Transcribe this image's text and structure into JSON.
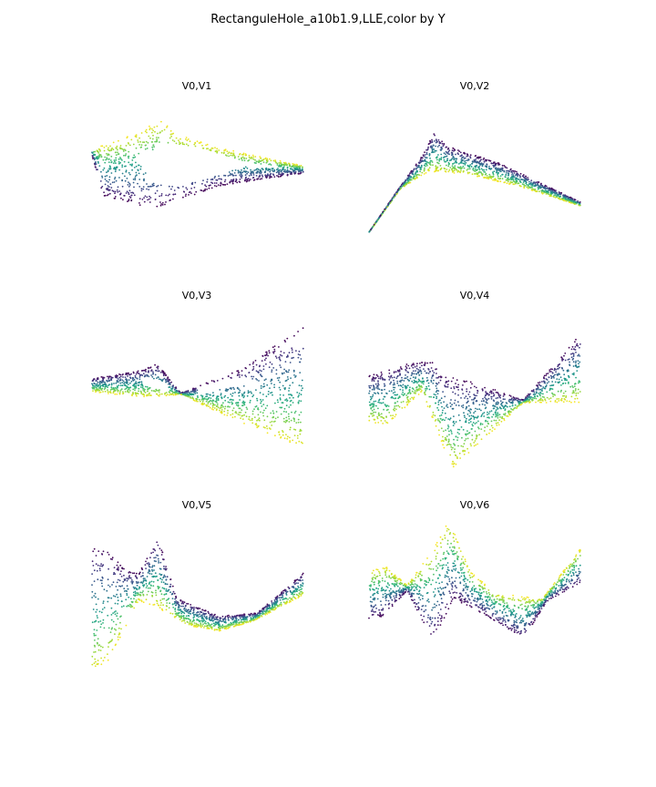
{
  "figure": {
    "title": "RectanguleHole_a10b1.9,LLE,color by Y"
  },
  "chart_data": [
    {
      "type": "scatter",
      "title": "V0,V1",
      "axes": "off",
      "grid": false,
      "legend": "none",
      "colormap": "viridis",
      "color_by": "Y",
      "outline": {
        "outer_top": [
          [
            0.0,
            0.72
          ],
          [
            0.2,
            0.86
          ],
          [
            0.33,
            1.0
          ],
          [
            0.4,
            0.86
          ],
          [
            0.6,
            0.73
          ],
          [
            1.0,
            0.56
          ]
        ],
        "outer_bottom": [
          [
            0.0,
            0.66
          ],
          [
            0.05,
            0.28
          ],
          [
            0.28,
            0.16
          ],
          [
            0.35,
            0.19
          ],
          [
            0.6,
            0.37
          ],
          [
            1.0,
            0.49
          ]
        ],
        "hole_top": [
          [
            0.22,
            0.65
          ],
          [
            0.35,
            0.77
          ],
          [
            0.5,
            0.74
          ],
          [
            0.72,
            0.6
          ],
          [
            0.9,
            0.55
          ]
        ],
        "hole_bottom": [
          [
            0.22,
            0.61
          ],
          [
            0.28,
            0.4
          ],
          [
            0.4,
            0.36
          ],
          [
            0.55,
            0.44
          ],
          [
            0.72,
            0.55
          ],
          [
            0.9,
            0.54
          ]
        ]
      }
    },
    {
      "type": "scatter",
      "title": "V0,V2",
      "axes": "off",
      "grid": false,
      "legend": "none",
      "colormap": "viridis",
      "color_by": "Y",
      "outline": {
        "top": [
          [
            0.0,
            0.0
          ],
          [
            0.15,
            0.46
          ],
          [
            0.26,
            0.78
          ],
          [
            0.31,
            1.0
          ],
          [
            0.37,
            0.85
          ],
          [
            0.62,
            0.68
          ],
          [
            1.0,
            0.3
          ]
        ],
        "bottom": [
          [
            0.0,
            0.0
          ],
          [
            0.15,
            0.43
          ],
          [
            0.28,
            0.6
          ],
          [
            0.45,
            0.58
          ],
          [
            0.7,
            0.46
          ],
          [
            1.0,
            0.26
          ]
        ]
      }
    },
    {
      "type": "scatter",
      "title": "V0,V3",
      "axes": "off",
      "grid": false,
      "legend": "none",
      "colormap": "viridis",
      "color_by": "Y",
      "outline": {
        "top": [
          [
            0.0,
            0.6
          ],
          [
            0.22,
            0.66
          ],
          [
            0.31,
            0.71
          ],
          [
            0.36,
            0.61
          ],
          [
            0.42,
            0.49
          ],
          [
            0.7,
            0.67
          ],
          [
            1.0,
            1.0
          ]
        ],
        "bottom": [
          [
            0.0,
            0.5
          ],
          [
            0.22,
            0.46
          ],
          [
            0.31,
            0.46
          ],
          [
            0.42,
            0.48
          ],
          [
            0.6,
            0.34
          ],
          [
            1.0,
            0.06
          ]
        ],
        "hole_a": [
          [
            0.24,
            0.58
          ],
          [
            0.3,
            0.56
          ],
          [
            0.36,
            0.53
          ]
        ],
        "hole_b": [
          [
            0.5,
            0.5
          ],
          [
            0.6,
            0.55
          ],
          [
            0.72,
            0.58
          ],
          [
            0.8,
            0.54
          ]
        ]
      }
    },
    {
      "type": "scatter",
      "title": "V0,V4",
      "axes": "off",
      "grid": false,
      "legend": "none",
      "colormap": "viridis",
      "color_by": "Y",
      "outline": {
        "top": [
          [
            0.0,
            0.7
          ],
          [
            0.2,
            0.79
          ],
          [
            0.31,
            0.8
          ],
          [
            0.33,
            0.72
          ],
          [
            0.55,
            0.62
          ],
          [
            0.73,
            0.52
          ],
          [
            1.0,
            1.0
          ]
        ],
        "bottom": [
          [
            0.0,
            0.36
          ],
          [
            0.08,
            0.33
          ],
          [
            0.25,
            0.58
          ],
          [
            0.36,
            0.15
          ],
          [
            0.4,
            0.02
          ],
          [
            0.55,
            0.24
          ],
          [
            0.73,
            0.5
          ],
          [
            1.0,
            0.5
          ]
        ]
      }
    },
    {
      "type": "scatter",
      "title": "V0,V5",
      "axes": "off",
      "grid": false,
      "legend": "none",
      "colormap": "viridis",
      "color_by": "Y",
      "outline": {
        "top": [
          [
            0.0,
            0.91
          ],
          [
            0.06,
            0.92
          ],
          [
            0.14,
            0.78
          ],
          [
            0.22,
            0.72
          ],
          [
            0.31,
            1.0
          ],
          [
            0.4,
            0.55
          ],
          [
            0.6,
            0.42
          ],
          [
            0.78,
            0.44
          ],
          [
            1.0,
            0.73
          ]
        ],
        "bottom": [
          [
            0.0,
            0.0
          ],
          [
            0.08,
            0.1
          ],
          [
            0.22,
            0.53
          ],
          [
            0.3,
            0.49
          ],
          [
            0.45,
            0.35
          ],
          [
            0.6,
            0.31
          ],
          [
            0.76,
            0.38
          ],
          [
            1.0,
            0.57
          ]
        ]
      }
    },
    {
      "type": "scatter",
      "title": "V0,V6",
      "axes": "off",
      "grid": false,
      "legend": "none",
      "colormap": "viridis",
      "color_by": "Y",
      "outline": {
        "top": [
          [
            0.0,
            0.63
          ],
          [
            0.08,
            0.66
          ],
          [
            0.18,
            0.52
          ],
          [
            0.31,
            0.8
          ],
          [
            0.38,
            1.0
          ],
          [
            0.48,
            0.62
          ],
          [
            0.6,
            0.46
          ],
          [
            0.82,
            0.42
          ],
          [
            1.0,
            0.79
          ]
        ],
        "bottom": [
          [
            0.0,
            0.27
          ],
          [
            0.07,
            0.29
          ],
          [
            0.18,
            0.48
          ],
          [
            0.3,
            0.1
          ],
          [
            0.4,
            0.42
          ],
          [
            0.55,
            0.3
          ],
          [
            0.73,
            0.12
          ],
          [
            0.84,
            0.4
          ],
          [
            1.0,
            0.53
          ]
        ]
      }
    }
  ]
}
